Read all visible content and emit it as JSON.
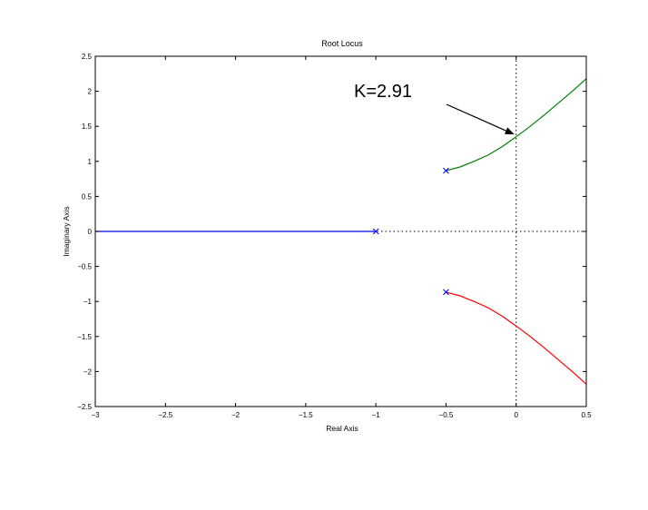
{
  "chart_data": {
    "type": "line",
    "title": "Root Locus",
    "xlabel": "Real Axis",
    "ylabel": "Imaginary Axis",
    "xlim": [
      -3,
      0.5
    ],
    "ylim": [
      -2.5,
      2.5
    ],
    "xticks": [
      -3,
      -2.5,
      -2,
      -1.5,
      -1,
      -0.5,
      0,
      0.5
    ],
    "xtick_labels": [
      "−3",
      "−2.5",
      "−2",
      "−1.5",
      "−1",
      "−0.5",
      "0",
      "0.5"
    ],
    "yticks": [
      2.5,
      2,
      1.5,
      1,
      0.5,
      0,
      -0.5,
      -1,
      -1.5,
      -2,
      -2.5
    ],
    "ytick_labels": [
      "2.5",
      "2",
      "1.5",
      "1",
      "0.5",
      "0",
      "−0.5",
      "−1",
      "−1.5",
      "−2",
      "−2.5"
    ],
    "grid": false,
    "reference_lines": [
      {
        "orientation": "vertical",
        "value": 0,
        "style": "dotted",
        "color": "#000000"
      },
      {
        "orientation": "horizontal",
        "value": 0,
        "style": "dotted",
        "color": "#000000"
      }
    ],
    "poles": [
      {
        "x": -1,
        "y": 0
      },
      {
        "x": -0.5,
        "y": 0.866
      },
      {
        "x": -0.5,
        "y": -0.866
      }
    ],
    "series": [
      {
        "color": "#0000ff",
        "x": [
          -1,
          -1.5,
          -2,
          -2.5,
          -3
        ],
        "y": [
          0,
          0,
          0,
          0,
          0
        ]
      },
      {
        "color": "#008000",
        "x": [
          -0.5,
          -0.4,
          -0.3,
          -0.2,
          -0.1,
          0,
          0.1,
          0.2,
          0.3,
          0.4,
          0.5
        ],
        "y": [
          0.866,
          0.92,
          1.0,
          1.09,
          1.21,
          1.35,
          1.5,
          1.66,
          1.83,
          2.0,
          2.18
        ]
      },
      {
        "color": "#ff0000",
        "x": [
          -0.5,
          -0.4,
          -0.3,
          -0.2,
          -0.1,
          0,
          0.1,
          0.2,
          0.3,
          0.4,
          0.5
        ],
        "y": [
          -0.866,
          -0.92,
          -1.0,
          -1.09,
          -1.21,
          -1.35,
          -1.5,
          -1.66,
          -1.83,
          -2.0,
          -2.18
        ]
      }
    ],
    "annotations": [
      {
        "text": "K=2.91",
        "target_x": 0,
        "target_y": 1.41,
        "arrow": true
      }
    ]
  }
}
